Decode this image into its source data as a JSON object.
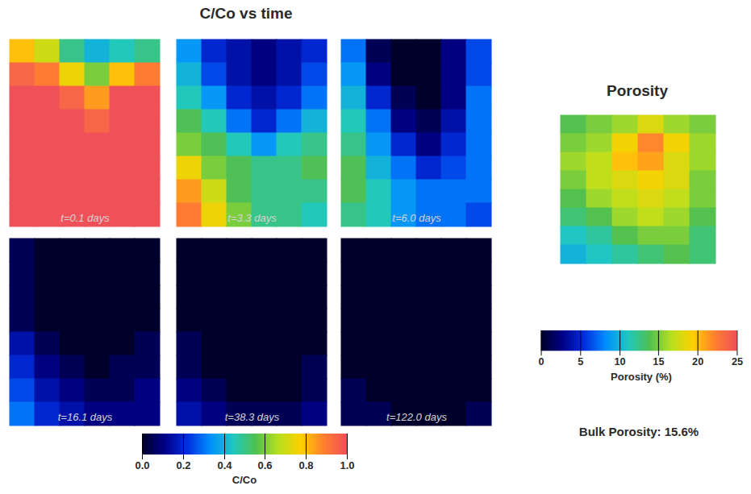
{
  "chart_data": [
    {
      "type": "heatmap",
      "title": "C/Co vs time",
      "tick_labels": false,
      "panel_titles": [
        "t=0.1 days",
        "t=3.3 days",
        "t=6.0 days",
        "t=16.1 days",
        "t=38.3 days",
        "t=122.0 days"
      ],
      "panels": [
        [
          [
            0.8,
            0.7,
            0.5,
            0.4,
            0.45,
            0.5
          ],
          [
            0.95,
            0.9,
            0.75,
            0.6,
            0.8,
            0.9
          ],
          [
            1,
            1,
            0.95,
            0.85,
            1,
            1
          ],
          [
            1,
            1,
            1,
            0.95,
            1,
            1
          ],
          [
            1,
            1,
            1,
            1,
            1,
            1
          ],
          [
            1,
            1,
            1,
            1,
            1,
            1
          ],
          [
            1,
            1,
            1,
            1,
            1,
            1
          ],
          [
            1,
            1,
            1,
            1,
            1,
            1
          ]
        ],
        [
          [
            0.35,
            0.2,
            0.15,
            0.1,
            0.15,
            0.2
          ],
          [
            0.4,
            0.25,
            0.15,
            0.1,
            0.15,
            0.25
          ],
          [
            0.45,
            0.35,
            0.2,
            0.15,
            0.2,
            0.3
          ],
          [
            0.55,
            0.45,
            0.3,
            0.2,
            0.3,
            0.4
          ],
          [
            0.6,
            0.55,
            0.45,
            0.35,
            0.45,
            0.5
          ],
          [
            0.75,
            0.6,
            0.55,
            0.5,
            0.5,
            0.55
          ],
          [
            0.85,
            0.7,
            0.55,
            0.5,
            0.5,
            0.5
          ],
          [
            0.9,
            0.75,
            0.6,
            0.5,
            0.5,
            0.45
          ]
        ],
        [
          [
            0.3,
            0.05,
            0,
            0,
            0.1,
            0.25
          ],
          [
            0.35,
            0.1,
            0,
            0,
            0.1,
            0.25
          ],
          [
            0.4,
            0.2,
            0.05,
            0,
            0.1,
            0.3
          ],
          [
            0.45,
            0.3,
            0.1,
            0.05,
            0.15,
            0.3
          ],
          [
            0.5,
            0.35,
            0.2,
            0.1,
            0.2,
            0.3
          ],
          [
            0.55,
            0.4,
            0.3,
            0.2,
            0.25,
            0.3
          ],
          [
            0.55,
            0.45,
            0.35,
            0.3,
            0.3,
            0.3
          ],
          [
            0.5,
            0.45,
            0.35,
            0.3,
            0.3,
            0.25
          ]
        ],
        [
          [
            0.05,
            0,
            0,
            0,
            0,
            0
          ],
          [
            0.05,
            0,
            0,
            0,
            0,
            0
          ],
          [
            0.05,
            0,
            0,
            0,
            0,
            0
          ],
          [
            0.05,
            0,
            0,
            0,
            0,
            0
          ],
          [
            0.15,
            0.05,
            0,
            0,
            0,
            0.05
          ],
          [
            0.2,
            0.1,
            0.05,
            0,
            0.05,
            0.05
          ],
          [
            0.25,
            0.15,
            0.1,
            0.05,
            0.05,
            0.1
          ],
          [
            0.3,
            0.2,
            0.15,
            0.1,
            0.1,
            0.1
          ]
        ],
        [
          [
            0,
            0,
            0,
            0,
            0,
            0
          ],
          [
            0,
            0,
            0,
            0,
            0,
            0
          ],
          [
            0,
            0,
            0,
            0,
            0,
            0
          ],
          [
            0,
            0,
            0,
            0,
            0,
            0
          ],
          [
            0.05,
            0,
            0,
            0,
            0,
            0
          ],
          [
            0.05,
            0,
            0,
            0,
            0,
            0.05
          ],
          [
            0.1,
            0.05,
            0,
            0,
            0,
            0.05
          ],
          [
            0.15,
            0.1,
            0.05,
            0.05,
            0.05,
            0.1
          ]
        ],
        [
          [
            0,
            0,
            0,
            0,
            0,
            0
          ],
          [
            0,
            0,
            0,
            0,
            0,
            0
          ],
          [
            0,
            0,
            0,
            0,
            0,
            0
          ],
          [
            0,
            0,
            0,
            0,
            0,
            0
          ],
          [
            0,
            0,
            0,
            0,
            0,
            0
          ],
          [
            0,
            0,
            0,
            0,
            0,
            0
          ],
          [
            0.05,
            0,
            0,
            0,
            0,
            0
          ],
          [
            0.05,
            0.05,
            0,
            0,
            0,
            0.05
          ]
        ]
      ],
      "colorbar": {
        "label": "C/Co",
        "range": [
          0,
          1
        ],
        "ticks": [
          {
            "value": 0,
            "label": "0.0"
          },
          {
            "value": 0.2,
            "label": "0.2"
          },
          {
            "value": 0.4,
            "label": "0.4"
          },
          {
            "value": 0.6,
            "label": "0.6"
          },
          {
            "value": 0.8,
            "label": "0.8"
          },
          {
            "value": 1,
            "label": "1.0"
          }
        ]
      }
    },
    {
      "type": "heatmap",
      "title": "Porosity",
      "tick_labels": false,
      "cells": [
        [
          14,
          15,
          16,
          18,
          16,
          15
        ],
        [
          15,
          16,
          19,
          22,
          19,
          16
        ],
        [
          16,
          17,
          20,
          21,
          18,
          16
        ],
        [
          15,
          17,
          18,
          19,
          18,
          15
        ],
        [
          14,
          16,
          17,
          18,
          17,
          15
        ],
        [
          13,
          14,
          16,
          17,
          16,
          14
        ],
        [
          11,
          12,
          14,
          15,
          15,
          13
        ],
        [
          10,
          11,
          12,
          13,
          14,
          13
        ]
      ],
      "colorbar": {
        "label": "Porosity (%)",
        "range": [
          0,
          25
        ],
        "ticks": [
          0,
          5,
          10,
          15,
          20,
          25
        ]
      },
      "annotation": "Bulk Porosity: 15.6%"
    }
  ]
}
